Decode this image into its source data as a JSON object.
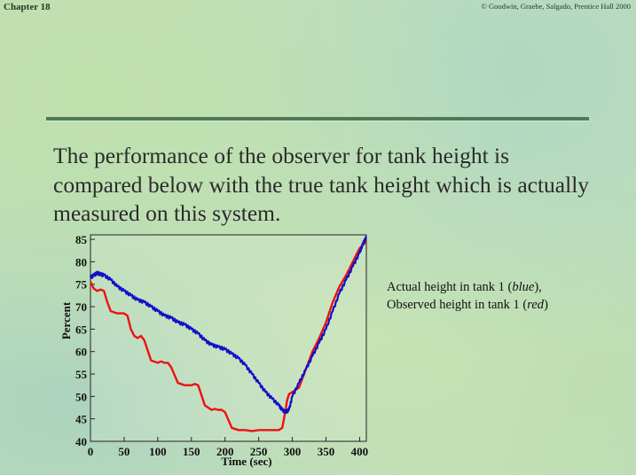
{
  "header": {
    "chapter": "Chapter 18",
    "copyright": "© Goodwin, Graebe, Salgado, Prentice Hall 2000"
  },
  "headline": "The performance of the observer for tank height is compared below with the true tank height which is actually measured on this system.",
  "legend": {
    "prefix1": "Actual height in tank 1 (",
    "series1": "blue",
    "suffix1": "),",
    "prefix2": "Observed height in tank 1 (",
    "series2": "red",
    "suffix2": ")"
  },
  "colors": {
    "actual": "#1010c8",
    "observed": "#ee1010",
    "rule": "#4d7a55"
  },
  "chart_data": {
    "type": "line",
    "xlabel": "Time (sec)",
    "ylabel": "Percent",
    "xlim": [
      0,
      410
    ],
    "ylim": [
      40,
      86
    ],
    "xticks": [
      0,
      50,
      100,
      150,
      200,
      250,
      300,
      350,
      400
    ],
    "yticks": [
      40,
      45,
      50,
      55,
      60,
      65,
      70,
      75,
      80,
      85
    ],
    "grid": false,
    "series": [
      {
        "name": "Actual height in tank 1",
        "color": "blue",
        "x": [
          0,
          5,
          10,
          15,
          20,
          30,
          40,
          50,
          60,
          70,
          80,
          90,
          100,
          110,
          120,
          130,
          140,
          150,
          160,
          170,
          180,
          190,
          200,
          210,
          220,
          230,
          240,
          250,
          260,
          270,
          280,
          285,
          290,
          295,
          300,
          310,
          320,
          330,
          340,
          350,
          360,
          370,
          380,
          390,
          400,
          405,
          410
        ],
        "y": [
          76.5,
          77.0,
          77.5,
          77.2,
          77.0,
          76.0,
          74.5,
          73.5,
          72.5,
          71.5,
          71.0,
          70.0,
          69.0,
          68.0,
          67.5,
          66.5,
          66.0,
          65.0,
          64.0,
          62.5,
          61.5,
          61.0,
          60.5,
          59.5,
          58.5,
          57.0,
          55.0,
          53.0,
          51.0,
          49.5,
          48.0,
          47.0,
          46.5,
          47.0,
          50.0,
          53.0,
          56.0,
          59.0,
          62.0,
          65.0,
          69.0,
          73.0,
          76.0,
          79.0,
          82.0,
          84.0,
          85.5
        ]
      },
      {
        "name": "Observed height in tank 1",
        "color": "red",
        "x": [
          0,
          5,
          10,
          15,
          20,
          25,
          30,
          40,
          50,
          55,
          60,
          65,
          70,
          75,
          80,
          90,
          100,
          105,
          110,
          115,
          120,
          130,
          140,
          145,
          150,
          155,
          160,
          170,
          180,
          185,
          190,
          195,
          200,
          210,
          220,
          225,
          230,
          240,
          250,
          255,
          260,
          270,
          280,
          285,
          290,
          292,
          295,
          300,
          310,
          320,
          330,
          340,
          350,
          360,
          370,
          380,
          390,
          400,
          410
        ],
        "y": [
          75.5,
          74.0,
          73.5,
          73.8,
          73.5,
          71.0,
          69.0,
          68.5,
          68.5,
          68.0,
          65.0,
          63.5,
          63.0,
          63.5,
          62.5,
          58.0,
          57.5,
          57.8,
          57.5,
          57.5,
          56.5,
          53.0,
          52.5,
          52.5,
          52.5,
          52.8,
          52.5,
          48.0,
          47.0,
          47.2,
          47.0,
          47.0,
          46.5,
          43.0,
          42.5,
          42.5,
          42.5,
          42.3,
          42.5,
          42.5,
          42.5,
          42.5,
          42.5,
          43.0,
          47.0,
          49.0,
          50.5,
          51.0,
          52.0,
          56.0,
          60.0,
          63.0,
          66.5,
          71.0,
          74.5,
          77.0,
          80.0,
          83.0,
          84.5
        ]
      }
    ]
  }
}
